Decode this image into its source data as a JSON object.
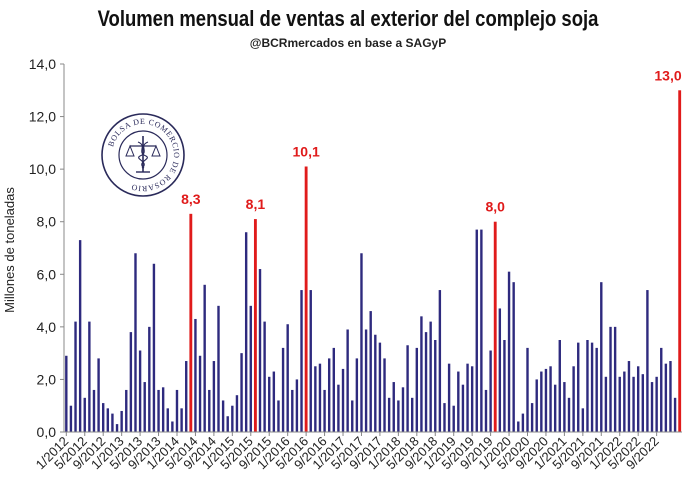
{
  "chart_data": {
    "type": "bar",
    "title": "Volumen mensual de ventas al exterior del complejo soja",
    "subtitle": "@BCRmercados en base a SAGyP",
    "ylabel": "Millones de toneladas",
    "xlabel": "",
    "ylim": [
      0,
      14
    ],
    "yticks": [
      "0,0",
      "2,0",
      "4,0",
      "6,0",
      "8,0",
      "10,0",
      "12,0",
      "14,0"
    ],
    "grid": false,
    "x_tick_labels": [
      "1/2012",
      "5/2012",
      "9/2012",
      "1/2013",
      "5/2013",
      "9/2013",
      "1/2014",
      "5/2014",
      "9/2014",
      "1/2015",
      "5/2015",
      "9/2015",
      "1/2016",
      "5/2016",
      "9/2016",
      "1/2017",
      "5/2017",
      "9/2017",
      "1/2018",
      "5/2018",
      "9/2018",
      "1/2019",
      "5/2019",
      "9/2019",
      "1/2020",
      "5/2020",
      "9/2020",
      "1/2021",
      "5/2021",
      "9/2021",
      "1/2022",
      "5/2022",
      "9/2022"
    ],
    "bar_color": "#2e2a7e",
    "highlight_color": "#e01b1b",
    "values": [
      2.9,
      1.0,
      4.2,
      7.3,
      1.3,
      4.2,
      1.6,
      2.8,
      1.1,
      0.9,
      0.7,
      0.3,
      0.8,
      1.6,
      3.8,
      6.8,
      3.1,
      1.9,
      4.0,
      6.4,
      1.6,
      1.7,
      0.9,
      0.4,
      1.6,
      0.9,
      2.7,
      8.3,
      4.3,
      2.9,
      5.6,
      1.6,
      2.7,
      4.8,
      1.2,
      0.6,
      1.0,
      1.4,
      3.0,
      7.6,
      4.8,
      8.1,
      6.2,
      4.2,
      2.1,
      2.3,
      1.2,
      3.2,
      4.1,
      1.6,
      2.0,
      5.4,
      10.1,
      5.4,
      2.5,
      2.6,
      1.6,
      2.8,
      3.2,
      1.8,
      2.4,
      3.9,
      1.2,
      2.8,
      6.8,
      3.9,
      4.6,
      3.7,
      3.4,
      2.8,
      1.3,
      1.9,
      1.2,
      1.7,
      3.3,
      1.3,
      3.2,
      4.4,
      3.8,
      4.2,
      3.5,
      5.4,
      1.1,
      2.6,
      1.0,
      2.3,
      1.8,
      2.6,
      2.5,
      7.7,
      7.7,
      1.6,
      3.1,
      8.0,
      4.7,
      3.5,
      6.1,
      5.7,
      0.4,
      0.7,
      3.2,
      1.1,
      2.0,
      2.3,
      2.4,
      2.5,
      1.8,
      3.5,
      1.9,
      1.3,
      2.5,
      3.4,
      0.9,
      3.5,
      3.4,
      3.2,
      5.7,
      2.1,
      4.0,
      4.0,
      2.1,
      2.3,
      2.7,
      2.1,
      2.5,
      2.2,
      5.4,
      1.9,
      2.1,
      3.2,
      2.6,
      2.7,
      1.3,
      13.0
    ],
    "highlights": [
      {
        "index": 27,
        "label": "8,3"
      },
      {
        "index": 41,
        "label": "8,1"
      },
      {
        "index": 52,
        "label": "10,1"
      },
      {
        "index": 93,
        "label": "8,0"
      },
      {
        "index": 133,
        "label": "13,0"
      }
    ]
  },
  "seal": {
    "text": "BOLSA DE COMERCIO DE ROSARIO"
  }
}
